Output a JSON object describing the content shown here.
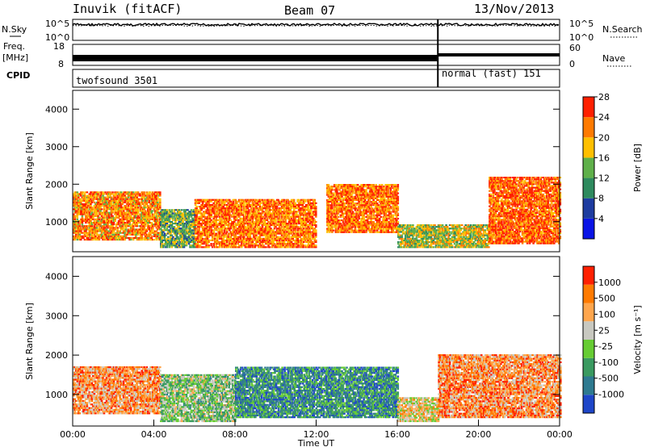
{
  "header": {
    "station": "Inuvik (fitACF)",
    "beam": "Beam 07",
    "date": "13/Nov/2013"
  },
  "left_labels": {
    "nsky": "N.Sky",
    "freq": "Freq.",
    "freq_unit": "[MHz]",
    "cpid": "CPID"
  },
  "right_labels": {
    "nsearch": "N.Search",
    "nave": "Nave"
  },
  "cpid_programs": [
    {
      "name": "twofsound 3501",
      "start_hour": 0
    },
    {
      "name": "normal (fast) 151",
      "start_hour": 18
    }
  ],
  "noise_axis": {
    "left_ticks": [
      "10^5",
      "10^0"
    ],
    "right_ticks": [
      "10^5",
      "10^0"
    ]
  },
  "freq_axis": {
    "left_ticks": [
      "18",
      "8"
    ],
    "right_ticks": [
      "60",
      "0"
    ]
  },
  "chart_data": [
    {
      "type": "heatmap",
      "name": "power",
      "ylabel": "Slant Range [km]",
      "xlim": [
        0,
        24
      ],
      "ylim": [
        200,
        4500
      ],
      "yticks": [
        1000,
        2000,
        3000,
        4000
      ],
      "colorbar": {
        "label": "Power [dB]",
        "ticks": [
          "4",
          "8",
          "12",
          "16",
          "20",
          "24",
          "28"
        ],
        "colors": [
          "#0a14e6",
          "#1e3ca0",
          "#2e8a5e",
          "#5fb04a",
          "#ffbf00",
          "#ff7a00",
          "#ff2000"
        ]
      },
      "regions": [
        {
          "t0": 0.0,
          "t1": 4.3,
          "r0": 500,
          "r1": 1800,
          "level": 0.75
        },
        {
          "t0": 4.3,
          "t1": 6.0,
          "r0": 300,
          "r1": 1300,
          "level": 0.45
        },
        {
          "t0": 6.0,
          "t1": 12.0,
          "r0": 300,
          "r1": 1600,
          "level": 0.8
        },
        {
          "t0": 12.5,
          "t1": 16.0,
          "r0": 700,
          "r1": 2000,
          "level": 0.8
        },
        {
          "t0": 16.0,
          "t1": 18.0,
          "r0": 300,
          "r1": 900,
          "level": 0.55
        },
        {
          "t0": 18.0,
          "t1": 20.5,
          "r0": 300,
          "r1": 900,
          "level": 0.6
        },
        {
          "t0": 20.5,
          "t1": 24.0,
          "r0": 400,
          "r1": 2200,
          "level": 0.85
        }
      ]
    },
    {
      "type": "heatmap",
      "name": "velocity",
      "xlabel": "Time UT",
      "ylabel": "Slant Range [km]",
      "xlim": [
        0,
        24
      ],
      "ylim": [
        200,
        4500
      ],
      "yticks": [
        1000,
        2000,
        3000,
        4000
      ],
      "xticks": [
        "00:00",
        "04:00",
        "08:00",
        "12:00",
        "16:00",
        "20:00",
        "00:00"
      ],
      "colorbar": {
        "label": "Velocity [m s⁻¹]",
        "ticks": [
          "1000",
          "500",
          "100",
          "25",
          "-25",
          "-100",
          "-500",
          "-1000"
        ],
        "colors": [
          "#1e46c8",
          "#2e7a90",
          "#3a9a60",
          "#66cc33",
          "#c8c8c0",
          "#ffa64d",
          "#ff7a00",
          "#ff2000"
        ]
      },
      "regions": [
        {
          "t0": 0.0,
          "t1": 4.3,
          "r0": 500,
          "r1": 1700,
          "level": 0.75
        },
        {
          "t0": 4.3,
          "t1": 8.0,
          "r0": 300,
          "r1": 1500,
          "level": 0.45
        },
        {
          "t0": 8.0,
          "t1": 16.0,
          "r0": 400,
          "r1": 1700,
          "level": 0.25
        },
        {
          "t0": 16.0,
          "t1": 18.0,
          "r0": 300,
          "r1": 900,
          "level": 0.6
        },
        {
          "t0": 18.0,
          "t1": 24.0,
          "r0": 400,
          "r1": 2000,
          "level": 0.75
        }
      ]
    }
  ]
}
